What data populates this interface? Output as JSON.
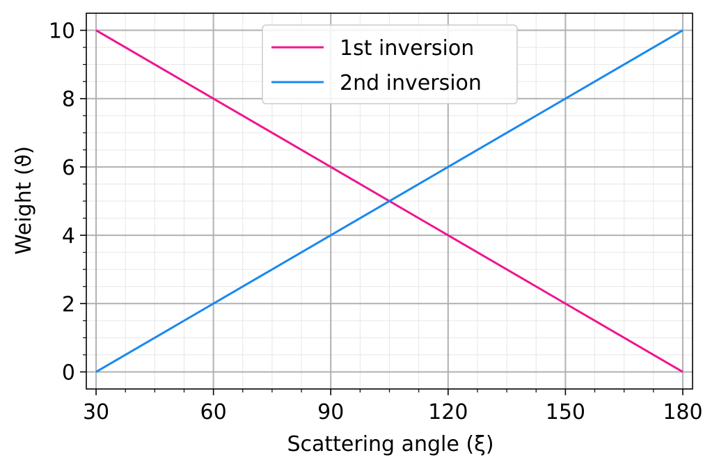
{
  "chart_data": {
    "type": "line",
    "title": "",
    "xlabel": "Scattering angle (ξ)",
    "ylabel": "Weight (ϑ)",
    "xlim": [
      27.5,
      182.5
    ],
    "ylim": [
      -0.5,
      10.5
    ],
    "xticks": [
      30,
      60,
      90,
      120,
      150,
      180
    ],
    "yticks": [
      0,
      2,
      4,
      6,
      8,
      10
    ],
    "x_minor_step": 7.5,
    "y_minor_step": 0.5,
    "grid": true,
    "legend_position": "top-center",
    "series": [
      {
        "name": "1st inversion",
        "color": "#f0158f",
        "x": [
          30,
          180
        ],
        "y": [
          10,
          0
        ]
      },
      {
        "name": "2nd inversion",
        "color": "#1a88ef",
        "x": [
          30,
          180
        ],
        "y": [
          0,
          10
        ]
      }
    ]
  }
}
